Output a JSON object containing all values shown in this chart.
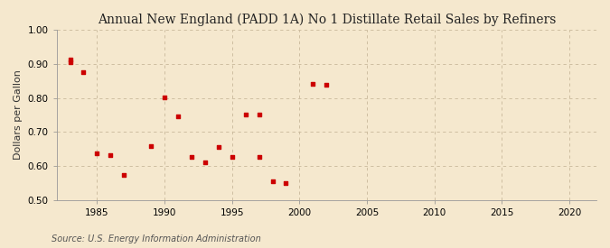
{
  "title": "Annual New England (PADD 1A) No 1 Distillate Retail Sales by Refiners",
  "ylabel": "Dollars per Gallon",
  "source": "Source: U.S. Energy Information Administration",
  "background_color": "#f5e8ce",
  "x_data": [
    1983,
    1983,
    1984,
    1985,
    1986,
    1987,
    1989,
    1990,
    1991,
    1992,
    1993,
    1994,
    1995,
    1996,
    1997,
    1997,
    1998,
    1999,
    2001,
    2002
  ],
  "y_data": [
    0.913,
    0.905,
    0.876,
    0.638,
    0.633,
    0.573,
    0.658,
    0.802,
    0.745,
    0.627,
    0.612,
    0.655,
    0.627,
    0.751,
    0.752,
    0.627,
    0.555,
    0.55,
    0.841,
    0.84
  ],
  "marker_color": "#cc0000",
  "marker_size": 3.5,
  "xlim": [
    1982,
    2022
  ],
  "ylim": [
    0.5,
    1.0
  ],
  "xticks": [
    1985,
    1990,
    1995,
    2000,
    2005,
    2010,
    2015,
    2020
  ],
  "yticks": [
    0.5,
    0.6,
    0.7,
    0.8,
    0.9,
    1.0
  ],
  "grid_color": "#c8b89a",
  "title_fontsize": 10,
  "label_fontsize": 8,
  "tick_fontsize": 7.5,
  "source_fontsize": 7
}
